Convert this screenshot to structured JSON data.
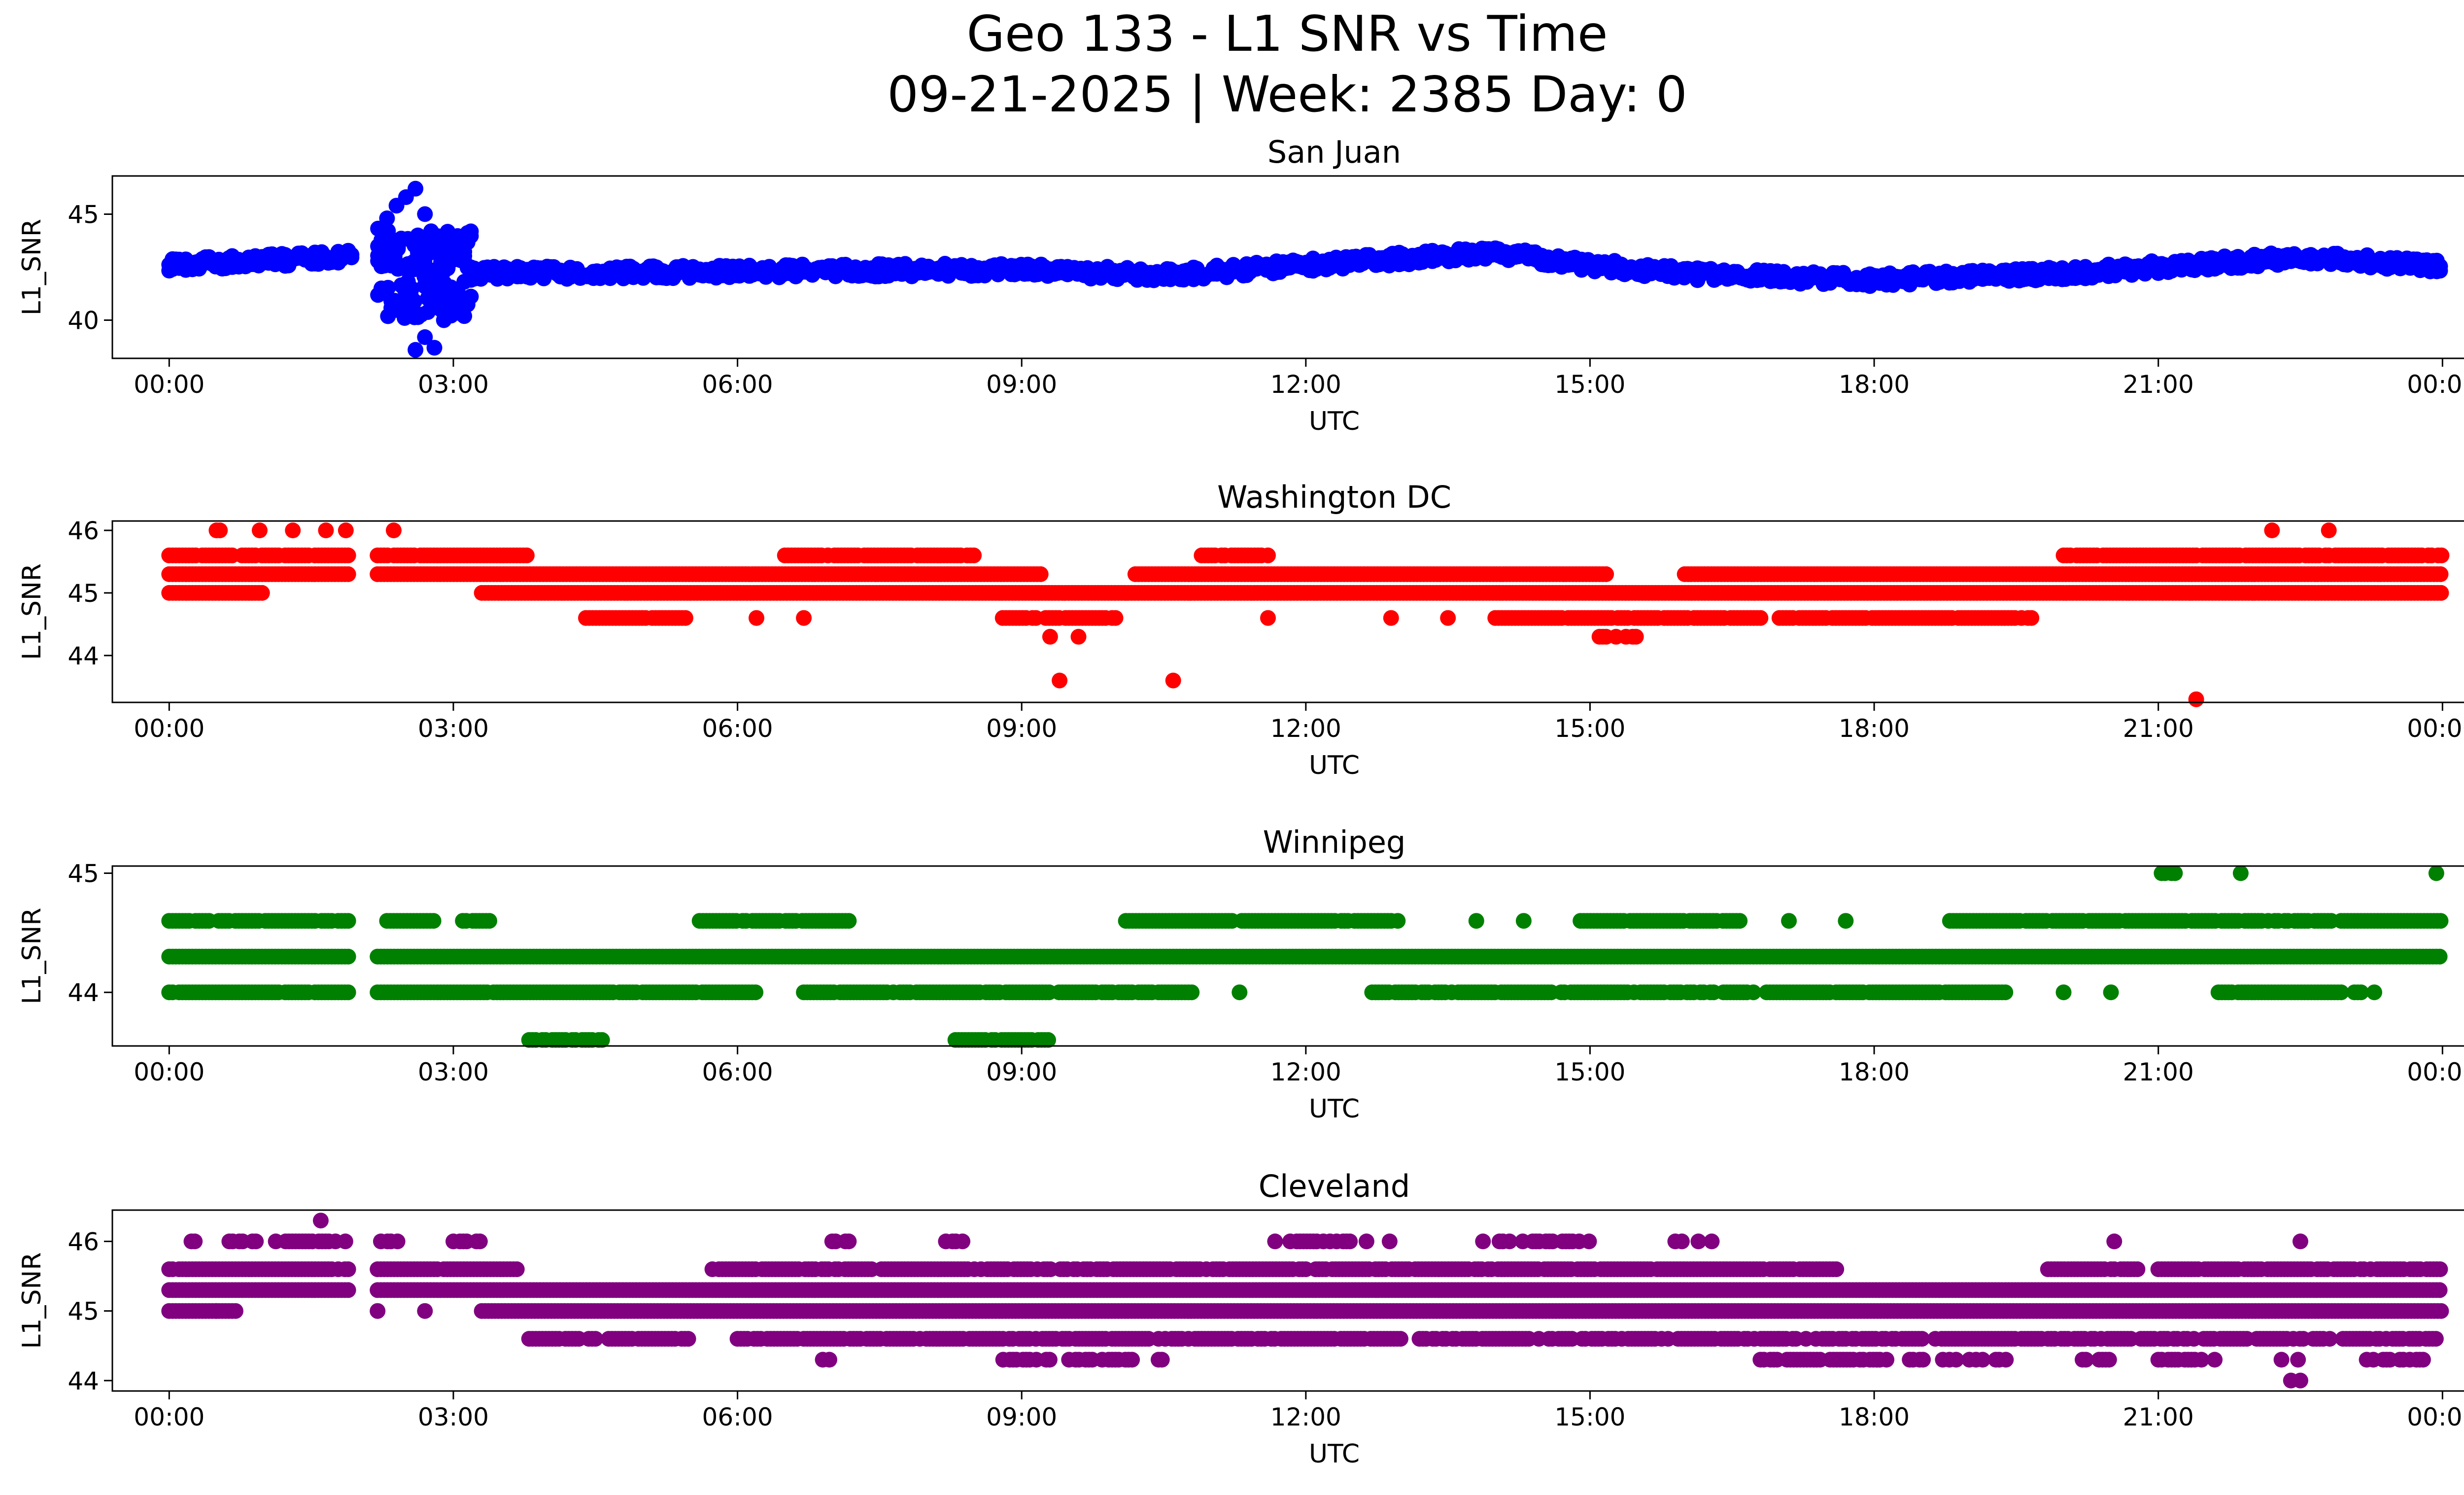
{
  "figure": {
    "title_line1": "Geo 133 - L1 SNR vs Time",
    "title_line2": "09-21-2025 | Week: 2385 Day: 0"
  },
  "chart_data": [
    {
      "type": "scatter",
      "title": "San Juan",
      "xlabel": "UTC",
      "ylabel": "L1_SNR",
      "color": "#0000ff",
      "xlim": [
        -0.6,
        25.2
      ],
      "ylim": [
        38.2,
        46.8
      ],
      "yticks": [
        40,
        45
      ],
      "xticks": [
        "00:00",
        "03:00",
        "06:00",
        "09:00",
        "12:00",
        "15:00",
        "18:00",
        "21:00",
        "00:00"
      ],
      "trend": [
        [
          0,
          42.6
        ],
        [
          2.0,
          43.0
        ],
        [
          2.3,
          42.2
        ],
        [
          3.0,
          42.2
        ],
        [
          6.0,
          42.3
        ],
        [
          9.0,
          42.4
        ],
        [
          10.5,
          42.1
        ],
        [
          12.0,
          42.6
        ],
        [
          14.0,
          43.2
        ],
        [
          15.0,
          42.6
        ],
        [
          16.0,
          42.2
        ],
        [
          18.0,
          41.9
        ],
        [
          20.0,
          42.2
        ],
        [
          22.0,
          42.8
        ],
        [
          22.5,
          43.0
        ],
        [
          24.0,
          42.5
        ]
      ],
      "band": 0.5,
      "burst": {
        "start": 2.2,
        "end": 3.2,
        "spread": 3.0
      },
      "outliers": [
        [
          2.3,
          44.8
        ],
        [
          2.4,
          45.4
        ],
        [
          2.5,
          45.8
        ],
        [
          2.6,
          46.2
        ],
        [
          2.7,
          45.0
        ],
        [
          2.6,
          38.6
        ],
        [
          2.8,
          38.7
        ],
        [
          2.7,
          39.2
        ],
        [
          2.5,
          40.5
        ],
        [
          2.9,
          40.0
        ]
      ]
    },
    {
      "type": "scatter",
      "title": "Washington DC",
      "xlabel": "UTC",
      "ylabel": "L1_SNR",
      "color": "#ff0000",
      "xlim": [
        -0.6,
        25.2
      ],
      "ylim": [
        43.25,
        46.15
      ],
      "yticks": [
        44,
        45,
        46
      ],
      "xticks": [
        "00:00",
        "03:00",
        "06:00",
        "09:00",
        "12:00",
        "15:00",
        "18:00",
        "21:00",
        "00:00"
      ],
      "levels": [
        {
          "y": 46.0,
          "segments": [
            [
              0.5,
              1.9
            ],
            [
              2.3,
              2.5
            ]
          ],
          "density": 0.15
        },
        {
          "y": 45.6,
          "segments": [
            [
              0,
              1.9
            ],
            [
              2.2,
              3.8
            ],
            [
              6.5,
              8.5
            ],
            [
              10.9,
              11.6
            ],
            [
              20.0,
              24.0
            ]
          ],
          "density": 0.9
        },
        {
          "y": 45.3,
          "segments": [
            [
              0,
              1.9
            ],
            [
              2.2,
              9.2
            ],
            [
              10.2,
              15.2
            ],
            [
              16.0,
              24.0
            ]
          ],
          "density": 1.0
        },
        {
          "y": 45.0,
          "segments": [
            [
              0,
              1.0
            ],
            [
              3.3,
              24.0
            ]
          ],
          "density": 1.0
        },
        {
          "y": 44.6,
          "segments": [
            [
              4.4,
              5.5
            ],
            [
              8.8,
              10.0
            ],
            [
              14.0,
              16.8
            ],
            [
              17.0,
              19.7
            ]
          ],
          "density": 0.9
        },
        {
          "y": 44.3,
          "segments": [
            [
              15.1,
              15.5
            ]
          ],
          "density": 0.6
        }
      ],
      "outliers": [
        [
          9.3,
          44.3
        ],
        [
          9.6,
          44.3
        ],
        [
          9.4,
          43.6
        ],
        [
          10.6,
          43.6
        ],
        [
          21.4,
          43.3
        ],
        [
          22.2,
          46.0
        ],
        [
          22.8,
          46.0
        ],
        [
          6.2,
          44.6
        ],
        [
          6.7,
          44.6
        ],
        [
          12.9,
          44.6
        ],
        [
          13.5,
          44.6
        ],
        [
          11.6,
          44.6
        ]
      ]
    },
    {
      "type": "scatter",
      "title": "Winnipeg",
      "xlabel": "UTC",
      "ylabel": "L1_SNR",
      "color": "#008000",
      "xlim": [
        -0.6,
        25.2
      ],
      "ylim": [
        43.55,
        45.06
      ],
      "yticks": [
        44,
        45
      ],
      "xticks": [
        "00:00",
        "03:00",
        "06:00",
        "09:00",
        "12:00",
        "15:00",
        "18:00",
        "21:00",
        "00:00"
      ],
      "levels": [
        {
          "y": 45.0,
          "segments": [
            [
              21.0,
              21.2
            ],
            [
              21.8,
              21.9
            ],
            [
              23.9,
              24.0
            ]
          ],
          "density": 0.5
        },
        {
          "y": 44.6,
          "segments": [
            [
              0,
              1.9
            ],
            [
              2.3,
              2.8
            ],
            [
              3.1,
              3.4
            ],
            [
              5.6,
              7.2
            ],
            [
              10.1,
              13.0
            ],
            [
              14.9,
              16.6
            ],
            [
              18.8,
              24.0
            ]
          ],
          "density": 0.9
        },
        {
          "y": 44.3,
          "segments": [
            [
              0,
              1.9
            ],
            [
              2.2,
              24.0
            ]
          ],
          "density": 1.0
        },
        {
          "y": 44.0,
          "segments": [
            [
              0,
              1.9
            ],
            [
              2.2,
              6.2
            ],
            [
              6.7,
              10.8
            ],
            [
              12.7,
              19.4
            ],
            [
              21.6,
              23.3
            ]
          ],
          "density": 0.9
        },
        {
          "y": 43.6,
          "segments": [
            [
              3.8,
              4.6
            ],
            [
              8.3,
              9.3
            ]
          ],
          "density": 0.8
        }
      ],
      "outliers": [
        [
          11.3,
          44.0
        ],
        [
          20.0,
          44.0
        ],
        [
          20.5,
          44.0
        ],
        [
          13.8,
          44.6
        ],
        [
          14.3,
          44.6
        ],
        [
          17.1,
          44.6
        ],
        [
          17.7,
          44.6
        ]
      ]
    },
    {
      "type": "scatter",
      "title": "Cleveland",
      "xlabel": "UTC",
      "ylabel": "L1_SNR",
      "color": "#800080",
      "xlim": [
        -0.6,
        25.2
      ],
      "ylim": [
        43.85,
        46.45
      ],
      "yticks": [
        44,
        45,
        46
      ],
      "xticks": [
        "00:00",
        "03:00",
        "06:00",
        "09:00",
        "12:00",
        "15:00",
        "18:00",
        "21:00",
        "00:00"
      ],
      "levels": [
        {
          "y": 46.0,
          "segments": [
            [
              0.2,
              0.3
            ],
            [
              0.6,
              1.9
            ],
            [
              2.2,
              2.5
            ],
            [
              3.0,
              3.3
            ],
            [
              7.0,
              7.2
            ],
            [
              8.2,
              8.4
            ],
            [
              11.5,
              11.7
            ],
            [
              11.8,
              12.9
            ],
            [
              13.8,
              15.0
            ],
            [
              15.9,
              16.3
            ],
            [
              20.5,
              20.6
            ],
            [
              22.5,
              22.5
            ]
          ],
          "density": 0.5
        },
        {
          "y": 45.6,
          "segments": [
            [
              0,
              1.9
            ],
            [
              2.2,
              3.7
            ],
            [
              5.7,
              17.6
            ],
            [
              19.8,
              20.8
            ],
            [
              21.0,
              24.0
            ]
          ],
          "density": 0.9
        },
        {
          "y": 45.3,
          "segments": [
            [
              0,
              1.9
            ],
            [
              2.2,
              24.0
            ]
          ],
          "density": 1.0
        },
        {
          "y": 45.0,
          "segments": [
            [
              0,
              0.7
            ],
            [
              3.3,
              24.0
            ]
          ],
          "density": 1.0
        },
        {
          "y": 44.6,
          "segments": [
            [
              3.8,
              5.5
            ],
            [
              6.0,
              13.0
            ],
            [
              13.2,
              17.0
            ],
            [
              17.0,
              24.0
            ]
          ],
          "density": 0.8
        },
        {
          "y": 44.3,
          "segments": [
            [
              6.9,
              7.0
            ],
            [
              8.7,
              9.3
            ],
            [
              9.5,
              10.5
            ],
            [
              16.8,
              19.4
            ],
            [
              20.2,
              20.5
            ],
            [
              21.0,
              21.6
            ],
            [
              22.3,
              22.5
            ],
            [
              23.2,
              23.8
            ]
          ],
          "density": 0.6
        }
      ],
      "outliers": [
        [
          1.6,
          46.3
        ],
        [
          22.4,
          44.0
        ],
        [
          22.5,
          44.0
        ],
        [
          0.5,
          45.0
        ],
        [
          2.2,
          45.0
        ],
        [
          2.7,
          45.0
        ]
      ]
    }
  ]
}
